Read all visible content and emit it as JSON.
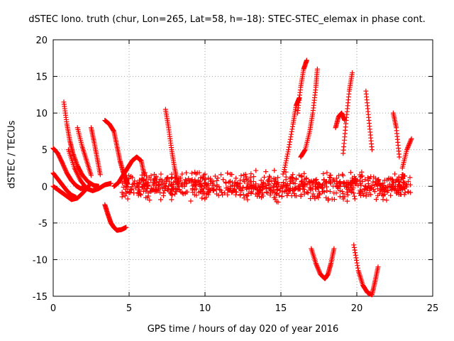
{
  "chart_data": {
    "type": "scatter",
    "title": "dSTEC Iono. truth (chur, Lon=265, Lat=58, h=-18): STEC-STEC_elemax in phase cont.",
    "xlabel": "GPS time / hours of day 020 of year 2016",
    "ylabel": "dSTEC  / TECUs",
    "xlim": [
      0,
      25
    ],
    "ylim": [
      -15,
      20
    ],
    "x_ticks": [
      "0",
      "5",
      "10",
      "15",
      "20",
      "25"
    ],
    "y_ticks": [
      "-15",
      "-10",
      "-5",
      "0",
      "5",
      "10",
      "15",
      "20"
    ],
    "grid": true,
    "marker": "+",
    "color": "#ff0000",
    "series": [
      {
        "x": [
          0.0,
          0.3,
          0.6,
          0.9,
          1.2,
          1.5,
          1.8,
          2.1
        ],
        "y": [
          5.2,
          4.5,
          3.2,
          1.8,
          0.8,
          0.1,
          -0.3,
          -0.2
        ]
      },
      {
        "x": [
          0.0,
          0.3,
          0.6,
          0.9,
          1.2,
          1.5
        ],
        "y": [
          1.8,
          1.0,
          0.2,
          -0.6,
          -1.2,
          -1.5
        ]
      },
      {
        "x": [
          0.0,
          0.4,
          0.8,
          1.2,
          1.6,
          2.0,
          2.4
        ],
        "y": [
          0.0,
          -0.6,
          -1.2,
          -1.8,
          -1.6,
          -0.8,
          0.2
        ]
      },
      {
        "x": [
          0.7,
          0.9,
          1.1,
          1.3,
          1.6,
          1.9,
          2.3,
          2.7,
          3.0
        ],
        "y": [
          11.5,
          8.5,
          6.2,
          4.5,
          2.8,
          1.6,
          0.6,
          0.1,
          0.0
        ]
      },
      {
        "x": [
          1.0,
          1.4,
          1.8,
          2.2,
          2.6,
          3.0,
          3.4,
          3.8
        ],
        "y": [
          5.0,
          2.5,
          0.8,
          -0.3,
          -0.6,
          -0.3,
          0.2,
          0.4
        ]
      },
      {
        "x": [
          1.6,
          1.9,
          2.2,
          2.5
        ],
        "y": [
          8.0,
          5.5,
          3.5,
          1.5
        ]
      },
      {
        "x": [
          2.5,
          2.7,
          2.9,
          3.1
        ],
        "y": [
          8.0,
          6.0,
          3.8,
          1.6
        ]
      },
      {
        "x": [
          3.4,
          3.7,
          4.0,
          4.2,
          4.4,
          4.6,
          4.8,
          4.9
        ],
        "y": [
          9.0,
          8.5,
          7.5,
          5.5,
          3.5,
          2.0,
          1.0,
          0.3
        ]
      },
      {
        "x": [
          3.4,
          3.6,
          3.8,
          4.0,
          4.2,
          4.5,
          4.8
        ],
        "y": [
          -2.5,
          -3.8,
          -5.0,
          -5.6,
          -6.0,
          -5.9,
          -5.6
        ]
      },
      {
        "x": [
          4.0,
          4.3,
          4.6,
          4.9,
          5.2,
          5.5,
          5.8,
          6.0
        ],
        "y": [
          0.0,
          0.5,
          1.5,
          2.5,
          3.5,
          4.0,
          3.5,
          1.5
        ]
      },
      {
        "x": [
          7.4,
          7.6,
          7.8,
          8.0,
          8.2
        ],
        "y": [
          10.5,
          8.0,
          5.0,
          2.5,
          0.5
        ]
      },
      {
        "x": [
          15.2,
          15.5,
          15.8,
          16.0,
          16.2
        ],
        "y": [
          2.0,
          5.0,
          8.5,
          11.0,
          12.0
        ]
      },
      {
        "x": [
          16.1,
          16.3,
          16.5,
          16.7
        ],
        "y": [
          10.0,
          13.5,
          16.0,
          17.2
        ]
      },
      {
        "x": [
          16.3,
          16.6,
          16.9,
          17.1,
          17.3,
          17.4
        ],
        "y": [
          4.0,
          5.0,
          7.5,
          10.0,
          13.5,
          16.0
        ]
      },
      {
        "x": [
          17.0,
          17.3,
          17.6,
          17.9,
          18.1,
          18.3,
          18.5
        ],
        "y": [
          -8.5,
          -10.5,
          -12.0,
          -12.6,
          -12.0,
          -10.5,
          -8.5
        ]
      },
      {
        "x": [
          18.6,
          18.8,
          19.0,
          19.2
        ],
        "y": [
          8.0,
          9.5,
          10.0,
          9.0
        ]
      },
      {
        "x": [
          19.1,
          19.3,
          19.5,
          19.7
        ],
        "y": [
          4.5,
          9.0,
          13.0,
          15.5
        ]
      },
      {
        "x": [
          19.8,
          20.1,
          20.4,
          20.7,
          21.0,
          21.2,
          21.4
        ],
        "y": [
          -8.0,
          -11.5,
          -13.5,
          -14.5,
          -14.8,
          -13.0,
          -11.0
        ]
      },
      {
        "x": [
          20.6,
          20.8,
          21.0
        ],
        "y": [
          13.0,
          9.0,
          5.0
        ]
      },
      {
        "x": [
          22.4,
          22.6,
          22.8
        ],
        "y": [
          10.0,
          8.0,
          4.0
        ]
      },
      {
        "x": [
          23.0,
          23.3,
          23.6
        ],
        "y": [
          2.5,
          5.0,
          6.5
        ]
      }
    ],
    "noise_band": {
      "x_range": [
        4.5,
        23.6
      ],
      "y_range": [
        -2.5,
        2.5
      ]
    }
  }
}
